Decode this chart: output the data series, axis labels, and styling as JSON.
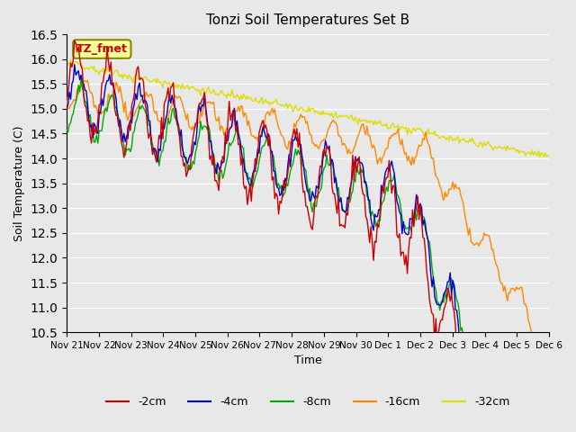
{
  "title": "Tonzi Soil Temperatures Set B",
  "xlabel": "Time",
  "ylabel": "Soil Temperature (C)",
  "ylim": [
    10.5,
    16.5
  ],
  "yticks": [
    10.5,
    11.0,
    11.5,
    12.0,
    12.5,
    13.0,
    13.5,
    14.0,
    14.5,
    15.0,
    15.5,
    16.0,
    16.5
  ],
  "xtick_labels": [
    "Nov 21",
    "Nov 22",
    "Nov 23",
    "Nov 24",
    "Nov 25",
    "Nov 26",
    "Nov 27",
    "Nov 28",
    "Nov 29",
    "Nov 30",
    "Dec 1",
    "Dec 2",
    "Dec 3",
    "Dec 4",
    "Dec 5",
    "Dec 6"
  ],
  "series_labels": [
    "-2cm",
    "-4cm",
    "-8cm",
    "-16cm",
    "-32cm"
  ],
  "series_colors": [
    "#cc0000",
    "#0000cc",
    "#00aa00",
    "#ff8800",
    "#dddd00"
  ],
  "line_widths": [
    1.2,
    1.2,
    1.2,
    1.2,
    1.2
  ],
  "background_color": "#e8e8e8",
  "plot_bg_color": "#e8e8e8",
  "grid_color": "#ffffff",
  "annotation_text": "TZ_fmet",
  "annotation_color": "#cc0000",
  "annotation_bg": "#ffff99",
  "annotation_border": "#888800"
}
